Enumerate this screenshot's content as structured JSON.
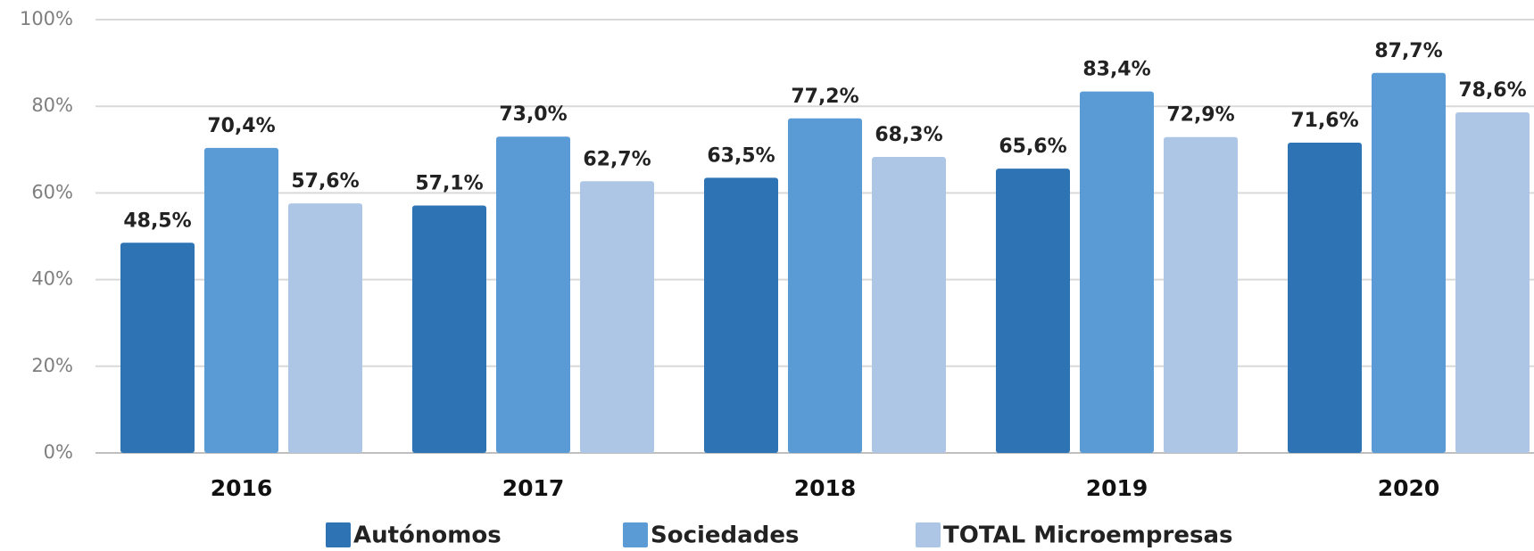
{
  "chart_data": {
    "type": "bar",
    "categories": [
      "2016",
      "2017",
      "2018",
      "2019",
      "2020"
    ],
    "series": [
      {
        "name": "Autónomos",
        "color": "#2e74b5",
        "values": [
          48.5,
          57.1,
          63.5,
          65.6,
          71.6
        ],
        "value_labels": [
          "48,5%",
          "57,1%",
          "63,5%",
          "65,6%",
          "71,6%"
        ]
      },
      {
        "name": "Sociedades",
        "color": "#5b9bd5",
        "values": [
          70.4,
          73.0,
          77.2,
          83.4,
          87.7
        ],
        "value_labels": [
          "70,4%",
          "73,0%",
          "77,2%",
          "83,4%",
          "87,7%"
        ]
      },
      {
        "name": "TOTAL Microempresas",
        "color": "#adc6e5",
        "values": [
          57.6,
          62.7,
          68.3,
          72.9,
          78.6
        ],
        "value_labels": [
          "57,6%",
          "62,7%",
          "68,3%",
          "72,9%",
          "78,6%"
        ]
      }
    ],
    "ylim": [
      0,
      100
    ],
    "yticks": [
      {
        "value": 0,
        "label": "0%"
      },
      {
        "value": 20,
        "label": "20%"
      },
      {
        "value": 40,
        "label": "40%"
      },
      {
        "value": 60,
        "label": "60%"
      },
      {
        "value": 80,
        "label": "80%"
      },
      {
        "value": 100,
        "label": "100%"
      }
    ],
    "grid": true,
    "legend": "bottom"
  }
}
